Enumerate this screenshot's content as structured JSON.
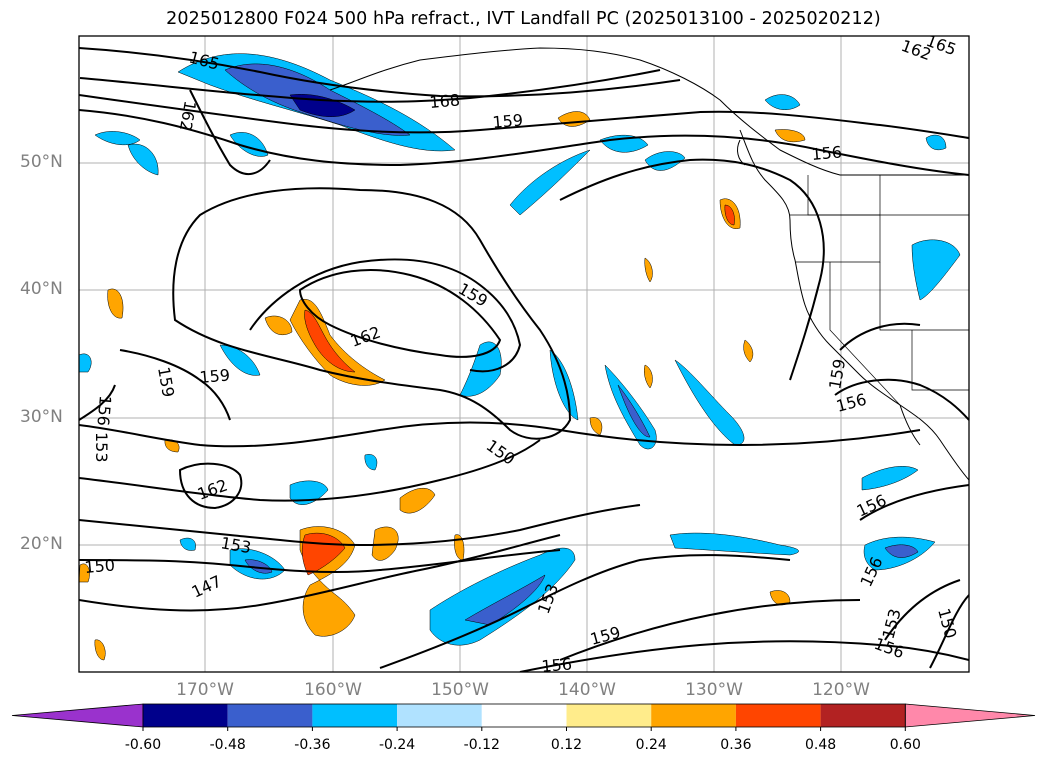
{
  "title": "2025012800 F024 500 hPa refract., IVT Landfall PC (2025013100 - 2025020212)",
  "lat_labels": [
    "50°N",
    "40°N",
    "30°N",
    "20°N"
  ],
  "lon_labels": [
    "170°W",
    "160°W",
    "150°W",
    "140°W",
    "130°W",
    "120°W"
  ],
  "contour_labels": [
    "165",
    "162",
    "168",
    "159",
    "156",
    "162",
    "162",
    "159",
    "159",
    "156",
    "153",
    "159",
    "150",
    "162",
    "153",
    "150",
    "147",
    "153",
    "159",
    "156",
    "159",
    "156",
    "156",
    "156",
    "153",
    "150",
    "156",
    "165"
  ],
  "colorbar": {
    "ticks": [
      "-0.60",
      "-0.48",
      "-0.36",
      "-0.24",
      "-0.12",
      "0.12",
      "0.24",
      "0.36",
      "0.48",
      "0.60"
    ],
    "colors": [
      "#9a32cd",
      "#00008b",
      "#3a5fcd",
      "#00bfff",
      "#b0e2ff",
      "#ffffff",
      "#ffec8b",
      "#ffa500",
      "#ff4500",
      "#b22222",
      "#ff88aa"
    ]
  }
}
